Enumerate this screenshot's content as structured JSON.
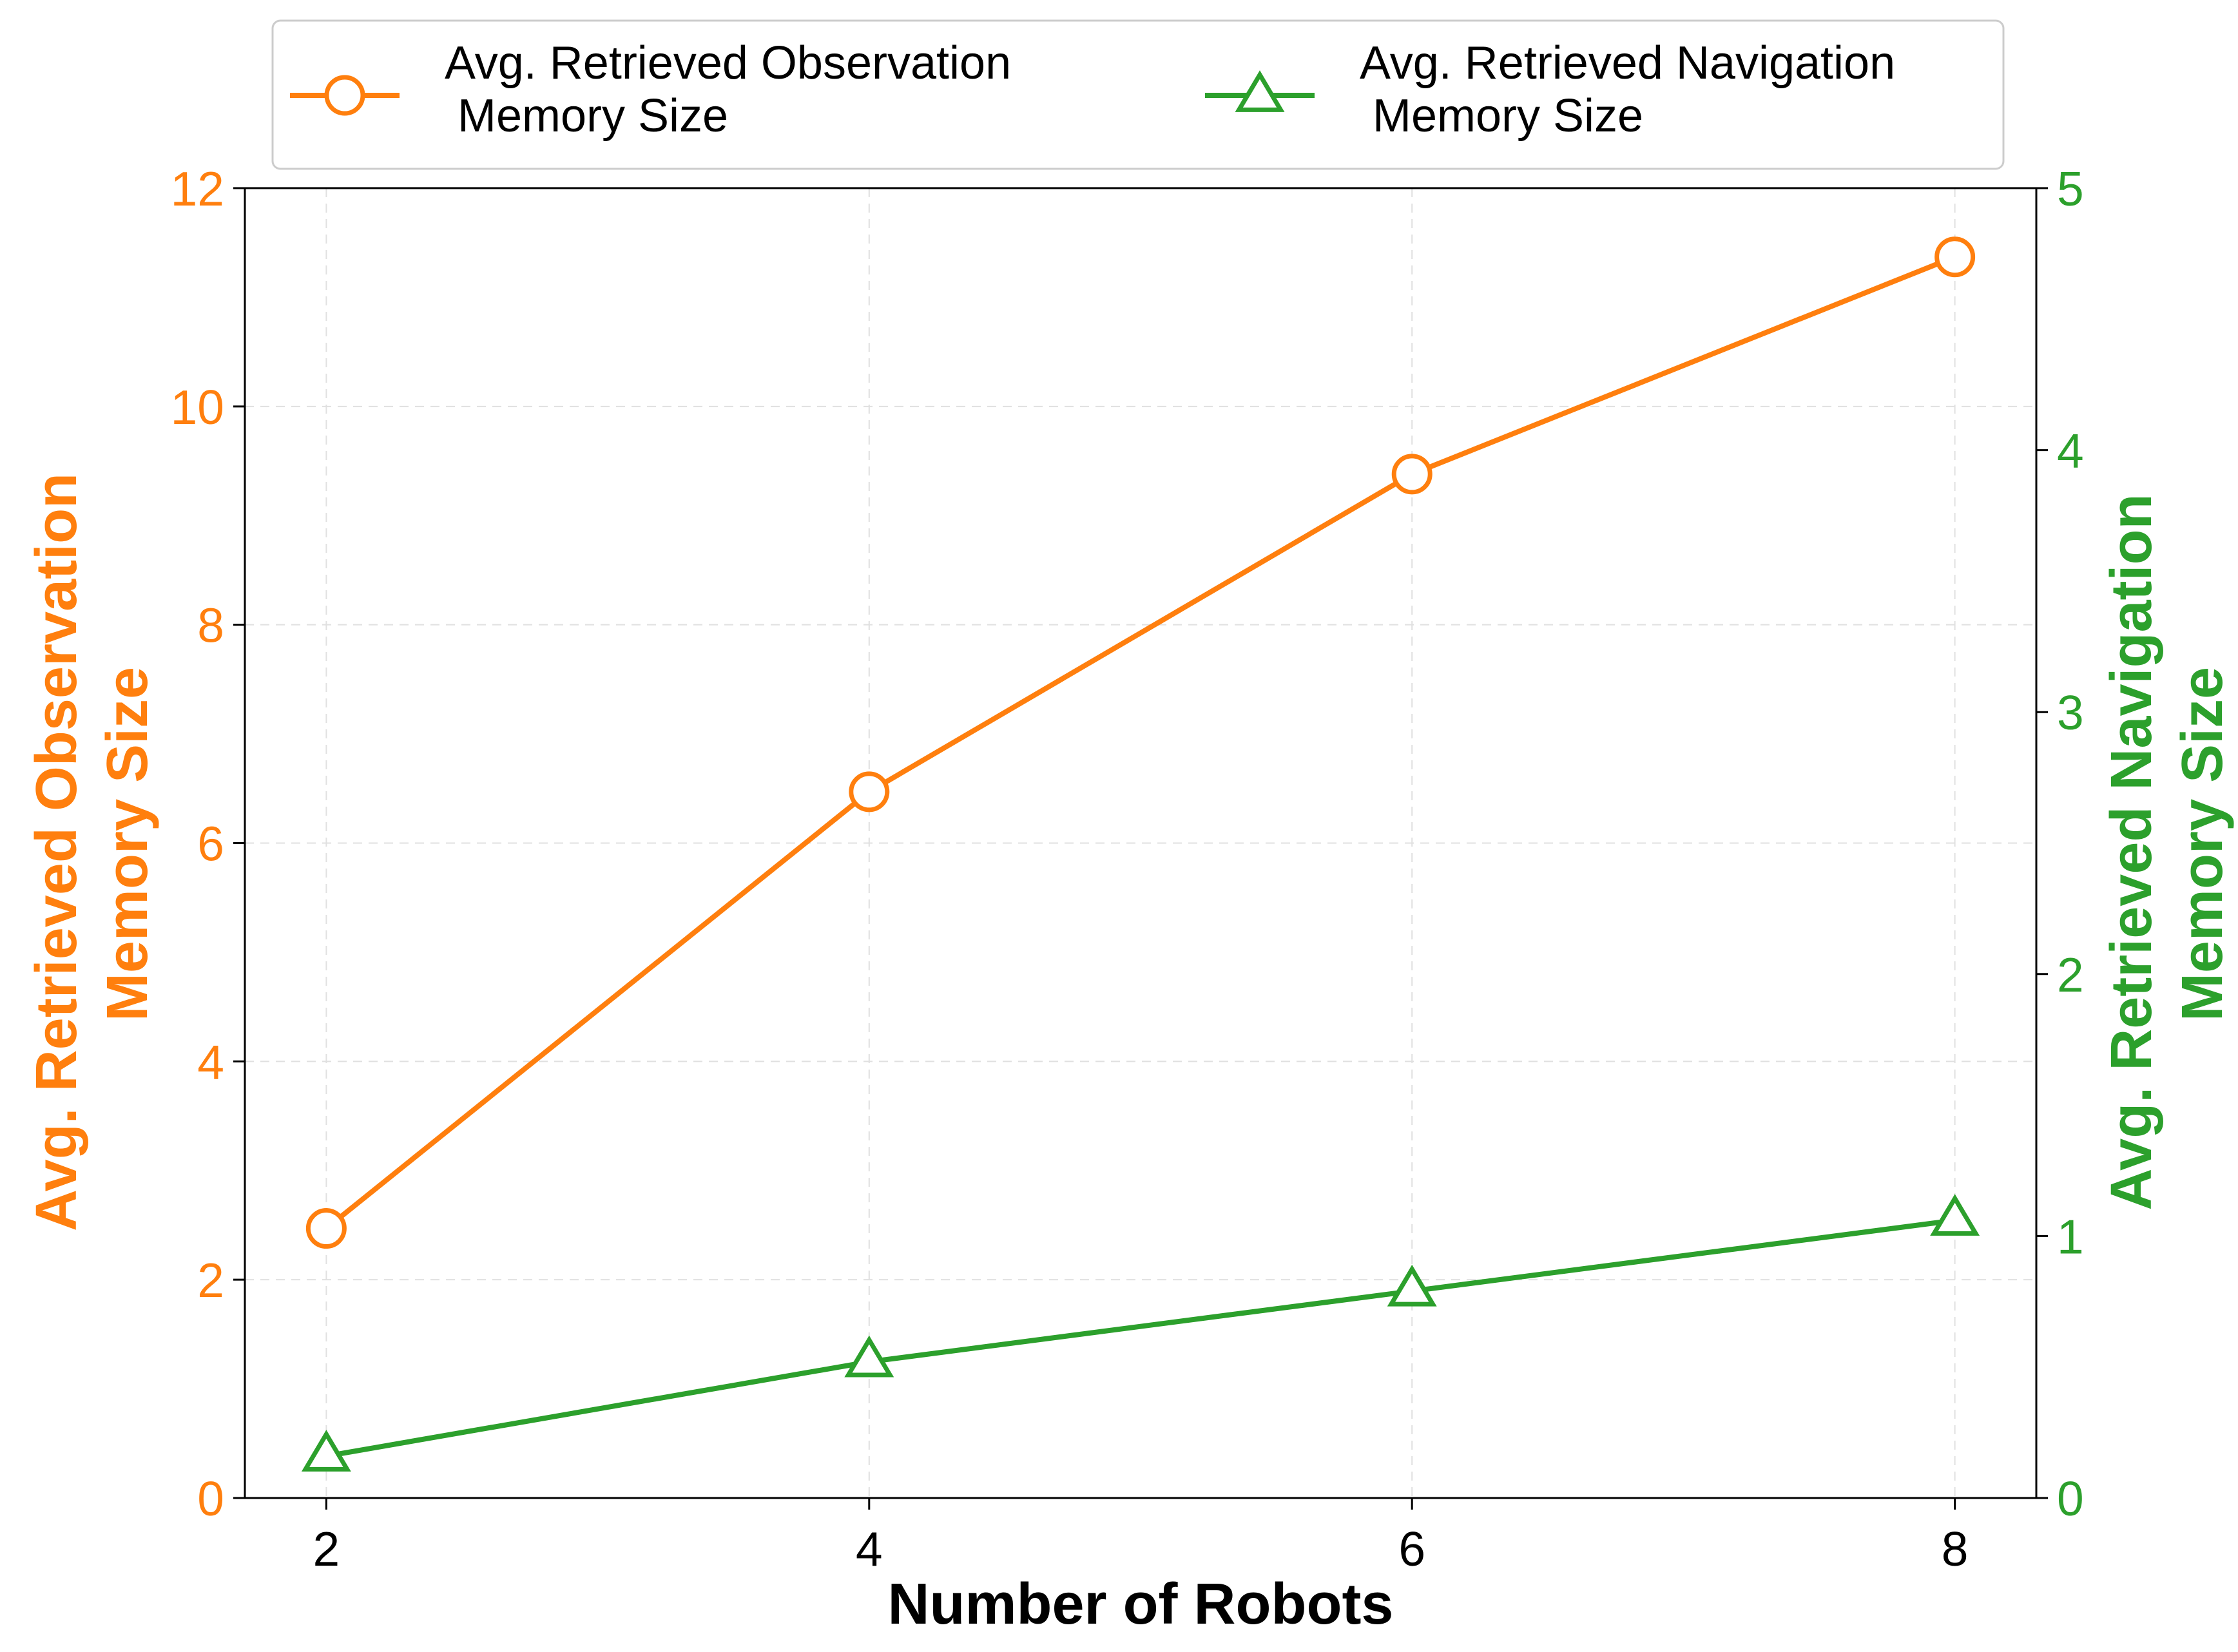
{
  "chart_data": {
    "type": "line",
    "x": [
      2,
      4,
      6,
      8
    ],
    "xlabel": "Number of Robots",
    "series": [
      {
        "name": "Avg. Retrieved Observation\n Memory Size",
        "axis": "left",
        "values": [
          2.47,
          6.47,
          9.38,
          11.37
        ],
        "color": "#ff7f0e",
        "marker": "circle"
      },
      {
        "name": "Avg. Retrieved Navigation\n Memory Size",
        "axis": "right",
        "values": [
          0.16,
          0.52,
          0.79,
          1.06
        ],
        "color": "#2ca02c",
        "marker": "triangle"
      }
    ],
    "ylabel_left": "Avg. Retrieved Observation\nMemory Size",
    "ylabel_right": "Avg. Retrieved Navigation\nMemory Size",
    "ylim_left": [
      0,
      12
    ],
    "ylim_right": [
      0,
      5
    ],
    "xlim": [
      1.7,
      8.3
    ],
    "x_ticks": [
      2,
      4,
      6,
      8
    ],
    "y_ticks_left": [
      0,
      2,
      4,
      6,
      8,
      10,
      12
    ],
    "y_ticks_right": [
      0,
      1,
      2,
      3,
      4,
      5
    ],
    "grid": true,
    "legend_placement": "top-center, above plot, 2 columns"
  }
}
